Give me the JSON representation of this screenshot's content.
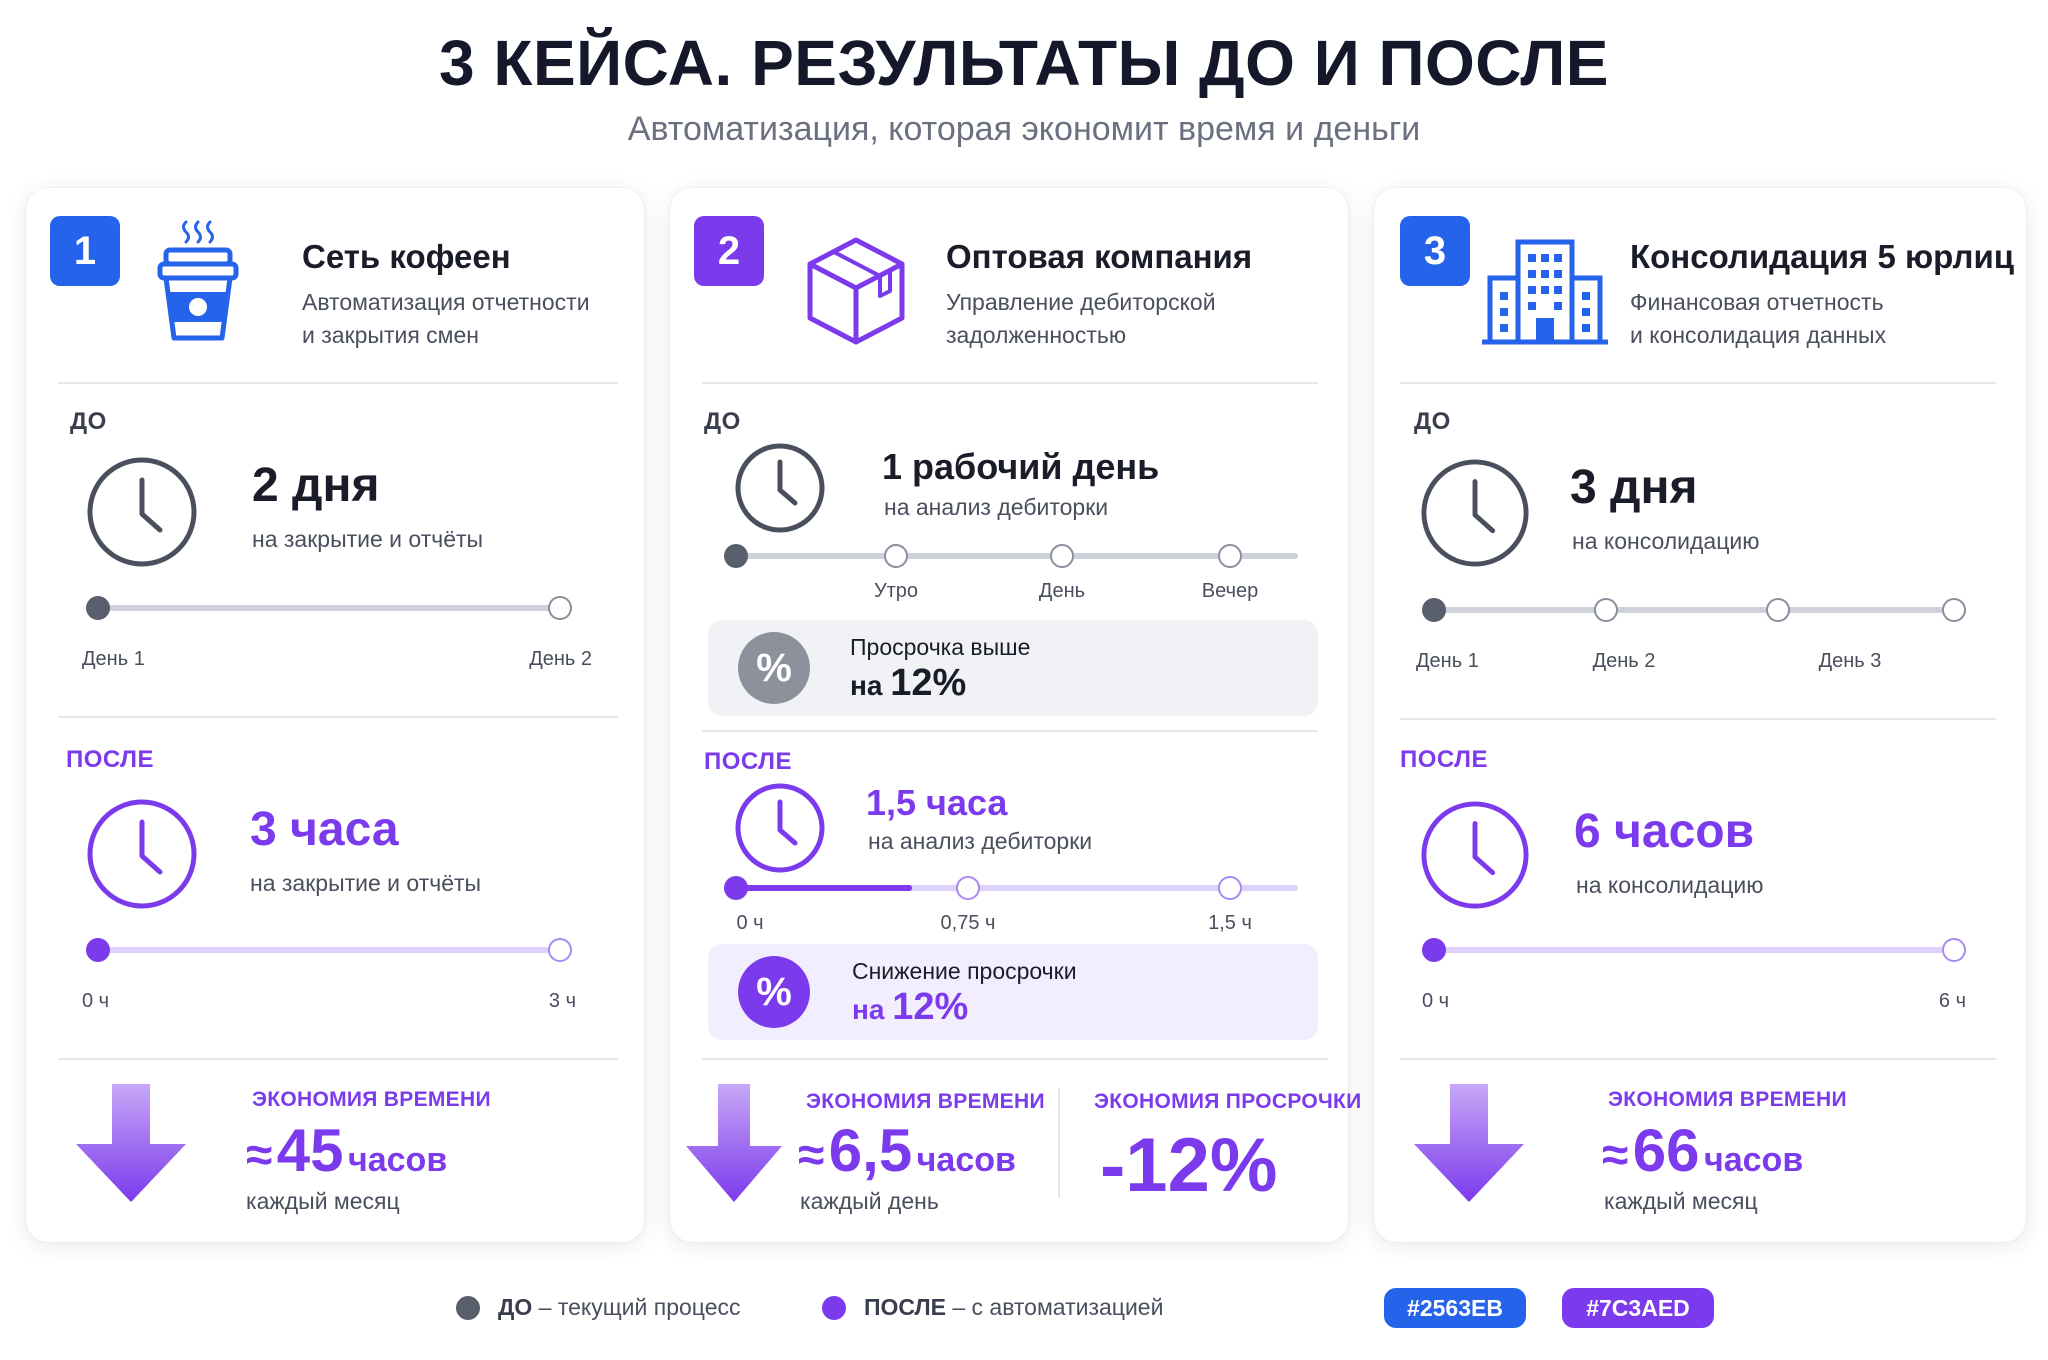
{
  "header": {
    "title": "3 КЕЙСА. РЕЗУЛЬТАТЫ ДО И ПОСЛЕ",
    "subtitle": "Автоматизация, которая экономит время и деньги"
  },
  "colors": {
    "blue": "#2563EB",
    "purple": "#7C3AED",
    "gray": "#5A5F6E"
  },
  "cases": [
    {
      "number": "1",
      "icon": "coffee-cup-icon",
      "title": "Сеть кофеен",
      "desc_line1": "Автоматизация отчетности",
      "desc_line2": "и закрытия смен",
      "before": {
        "label": "ДО",
        "value": "2 дня",
        "desc": "на закрытие и отчёты",
        "ticks": [
          "День 1",
          "День 2"
        ]
      },
      "after": {
        "label": "ПОСЛЕ",
        "value": "3 часа",
        "desc": "на закрытие и отчёты",
        "ticks": [
          "0 ч",
          "3 ч"
        ]
      },
      "savings": {
        "label": "ЭКОНОМИЯ ВРЕМЕНИ",
        "prefix": "≈",
        "number": "45",
        "unit": "часов",
        "period": "каждый месяц"
      }
    },
    {
      "number": "2",
      "icon": "box-icon",
      "title": "Оптовая компания",
      "desc_line1": "Управление дебиторской",
      "desc_line2": "задолженностью",
      "before": {
        "label": "ДО",
        "value": "1 рабочий день",
        "desc": "на анализ дебиторки",
        "ticks": [
          "Утро",
          "День",
          "Вечер"
        ],
        "info_line1": "Просрочка выше",
        "info_prefix": "на",
        "info_value": "12%"
      },
      "after": {
        "label": "ПОСЛЕ",
        "value": "1,5 часа",
        "desc": "на анализ дебиторки",
        "ticks": [
          "0 ч",
          "0,75 ч",
          "1,5 ч"
        ],
        "info_line1": "Снижение просрочки",
        "info_prefix": "на",
        "info_value": "12%"
      },
      "savings": {
        "label": "ЭКОНОМИЯ ВРЕМЕНИ",
        "prefix": "≈",
        "number": "6,5",
        "unit": "часов",
        "period": "каждый день",
        "label2": "ЭКОНОМИЯ ПРОСРОЧКИ",
        "value2": "-12%"
      }
    },
    {
      "number": "3",
      "icon": "office-building-icon",
      "title": "Консолидация 5 юрлиц",
      "desc_line1": "Финансовая отчетность",
      "desc_line2": "и консолидация данных",
      "before": {
        "label": "ДО",
        "value": "3 дня",
        "desc": "на консолидацию",
        "ticks": [
          "День 1",
          "День 2",
          "День 3"
        ]
      },
      "after": {
        "label": "ПОСЛЕ",
        "value": "6 часов",
        "desc": "на консолидацию",
        "ticks": [
          "0 ч",
          "6 ч"
        ]
      },
      "savings": {
        "label": "ЭКОНОМИЯ ВРЕМЕНИ",
        "prefix": "≈",
        "number": "66",
        "unit": "часов",
        "period": "каждый месяц"
      }
    }
  ],
  "legend": {
    "before_bold": "ДО",
    "before_text": " – текущий процесс",
    "after_bold": "ПОСЛЕ",
    "after_text": " – с автоматизацией",
    "swatch_blue": "#2563EB",
    "swatch_purple": "#7C3AED"
  }
}
